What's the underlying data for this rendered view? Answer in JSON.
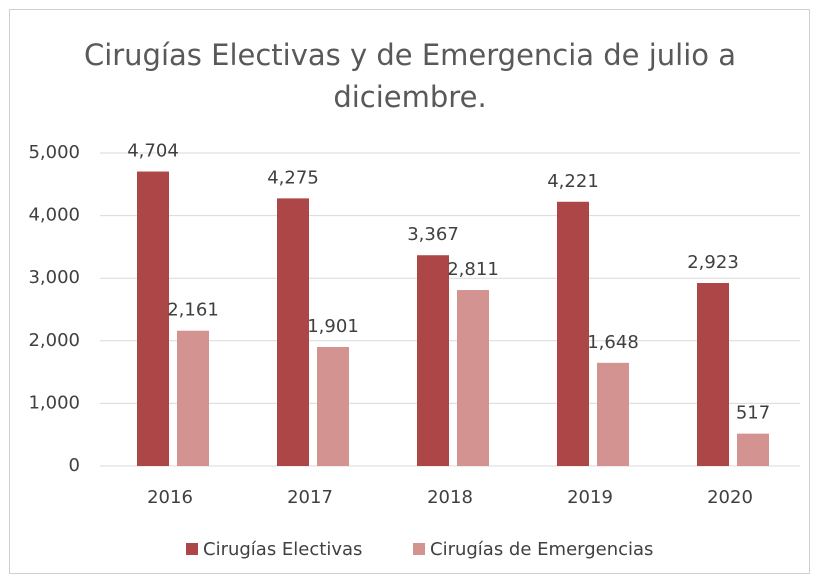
{
  "chart_data": {
    "type": "bar",
    "title": "Cirugías Electivas y de Emergencia de julio a diciembre.",
    "categories": [
      "2016",
      "2017",
      "2018",
      "2019",
      "2020"
    ],
    "series": [
      {
        "name": "Cirugías Electivas",
        "color": "#ad4646",
        "values": [
          4704,
          4275,
          3367,
          4221,
          2923
        ],
        "value_labels": [
          "4,704",
          "4,275",
          "3,367",
          "4,221",
          "2,923"
        ]
      },
      {
        "name": "Cirugías de Emergencias",
        "color": "#d39391",
        "values": [
          2161,
          1901,
          2811,
          1648,
          517
        ],
        "value_labels": [
          "2,161",
          "1,901",
          "2,811",
          "1,648",
          "517"
        ]
      }
    ],
    "ylim": [
      0,
      5000
    ],
    "yticks": [
      0,
      {
        "value": 1000,
        "label": "1,000"
      },
      {
        "value": 2000,
        "label": "2,000"
      },
      {
        "value": 3000,
        "label": "3,000"
      },
      {
        "value": 4000,
        "label": "4,000"
      },
      {
        "value": 5000,
        "label": "5,000"
      }
    ],
    "grid": true,
    "legend": "bottom"
  }
}
